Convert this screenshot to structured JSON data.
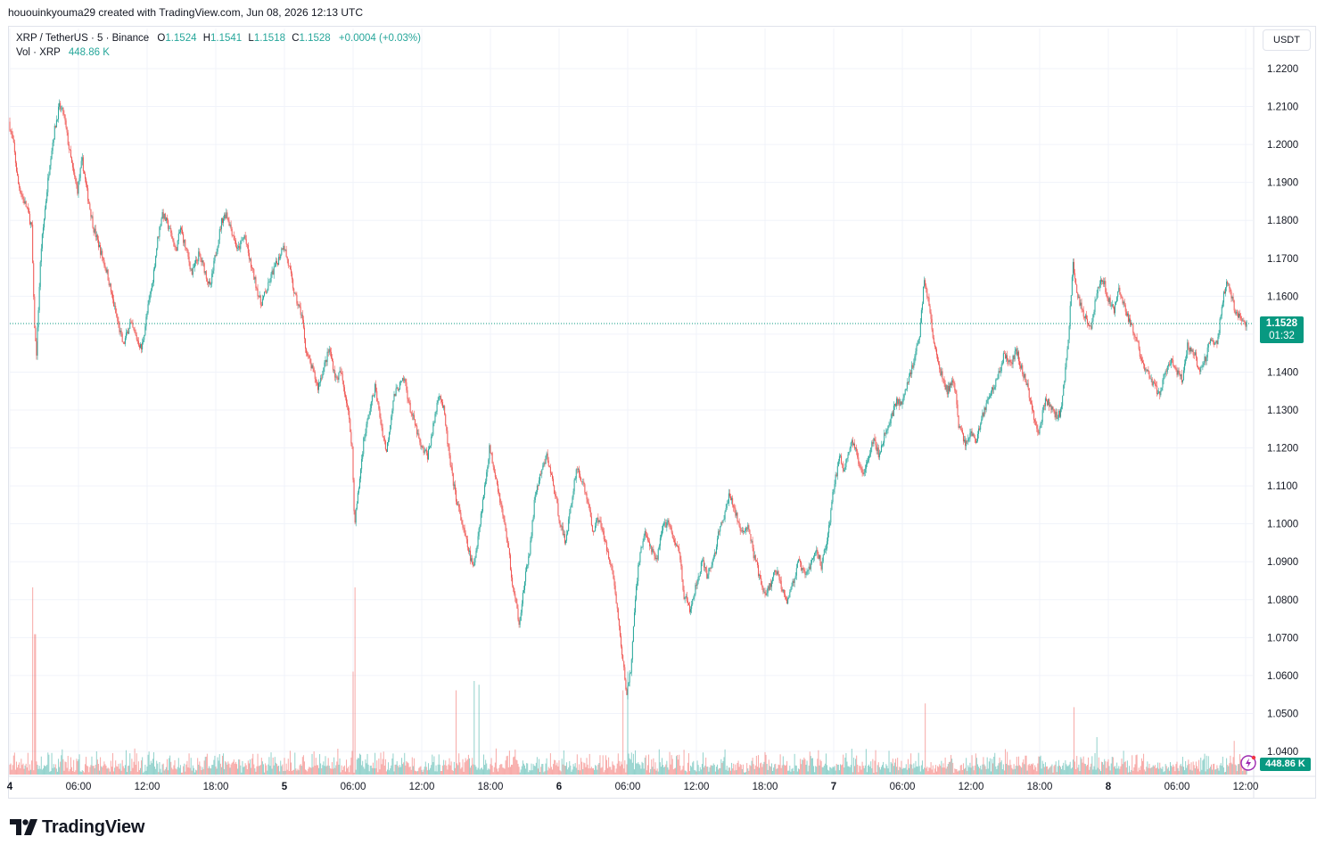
{
  "attribution": "hououinkyouma29 created with TradingView.com, Jun 08, 2026 12:13 UTC",
  "legend": {
    "symbol": "XRP / TetherUS · 5 · Binance",
    "o_label": "O",
    "o_value": "1.1524",
    "h_label": "H",
    "h_value": "1.1541",
    "l_label": "L",
    "l_value": "1.1518",
    "c_label": "C",
    "c_value": "1.1528",
    "change": "+0.0004 (+0.03%)",
    "vol_label": "Vol · XRP",
    "vol_value": "448.86 K"
  },
  "currency": "USDT",
  "price_tag": {
    "price": "1.1528",
    "countdown": "01:32"
  },
  "volume_tag": "448.86 K",
  "brand": "TradingView",
  "colors": {
    "up": "#26a69a",
    "down": "#ef5350",
    "accent": "#089981",
    "grid": "#f0f3fa"
  },
  "chart_data": {
    "type": "candlestick",
    "symbol": "XRP / TetherUS",
    "interval": "5",
    "exchange": "Binance",
    "y_axis": {
      "ticks": [
        "1.2200",
        "1.2100",
        "1.2000",
        "1.1900",
        "1.1800",
        "1.1700",
        "1.1600",
        "1.1500",
        "1.1400",
        "1.1300",
        "1.1200",
        "1.1100",
        "1.1000",
        "1.0900",
        "1.0800",
        "1.0700",
        "1.0600",
        "1.0500",
        "1.0400"
      ],
      "range": [
        1.0375,
        1.2225
      ],
      "last_price": 1.1528
    },
    "x_axis": {
      "ticks": [
        {
          "label": "4",
          "t": 0
        },
        {
          "label": "06:00",
          "t": 6
        },
        {
          "label": "12:00",
          "t": 12
        },
        {
          "label": "18:00",
          "t": 18
        },
        {
          "label": "5",
          "t": 24
        },
        {
          "label": "06:00",
          "t": 30
        },
        {
          "label": "12:00",
          "t": 36
        },
        {
          "label": "18:00",
          "t": 42
        },
        {
          "label": "6",
          "t": 48
        },
        {
          "label": "06:00",
          "t": 54
        },
        {
          "label": "12:00",
          "t": 60
        },
        {
          "label": "18:00",
          "t": 66
        },
        {
          "label": "7",
          "t": 72
        },
        {
          "label": "06:00",
          "t": 78
        },
        {
          "label": "12:00",
          "t": 84
        },
        {
          "label": "18:00",
          "t": 90
        },
        {
          "label": "8",
          "t": 96
        },
        {
          "label": "06:00",
          "t": 102
        },
        {
          "label": "12:00",
          "t": 108
        }
      ],
      "range_hours": [
        0,
        108.25
      ]
    },
    "price_path": [
      [
        0.0,
        1.206
      ],
      [
        0.4,
        1.2
      ],
      [
        0.8,
        1.19
      ],
      [
        1.2,
        1.186
      ],
      [
        1.6,
        1.183
      ],
      [
        2.0,
        1.178
      ],
      [
        2.2,
        1.155
      ],
      [
        2.4,
        1.144
      ],
      [
        2.8,
        1.172
      ],
      [
        3.2,
        1.184
      ],
      [
        3.6,
        1.196
      ],
      [
        4.0,
        1.204
      ],
      [
        4.4,
        1.21
      ],
      [
        4.8,
        1.208
      ],
      [
        5.2,
        1.2
      ],
      [
        5.6,
        1.193
      ],
      [
        6.0,
        1.188
      ],
      [
        6.4,
        1.196
      ],
      [
        6.8,
        1.188
      ],
      [
        7.4,
        1.178
      ],
      [
        8.0,
        1.172
      ],
      [
        8.6,
        1.166
      ],
      [
        9.0,
        1.16
      ],
      [
        9.6,
        1.152
      ],
      [
        10.0,
        1.147
      ],
      [
        10.6,
        1.153
      ],
      [
        11.0,
        1.15
      ],
      [
        11.6,
        1.146
      ],
      [
        12.0,
        1.154
      ],
      [
        12.6,
        1.165
      ],
      [
        13.0,
        1.175
      ],
      [
        13.4,
        1.182
      ],
      [
        14.0,
        1.178
      ],
      [
        14.6,
        1.172
      ],
      [
        15.0,
        1.178
      ],
      [
        15.6,
        1.171
      ],
      [
        16.0,
        1.166
      ],
      [
        16.6,
        1.171
      ],
      [
        17.0,
        1.168
      ],
      [
        17.6,
        1.162
      ],
      [
        18.0,
        1.17
      ],
      [
        18.6,
        1.18
      ],
      [
        19.0,
        1.182
      ],
      [
        19.6,
        1.176
      ],
      [
        20.0,
        1.172
      ],
      [
        20.6,
        1.176
      ],
      [
        21.0,
        1.17
      ],
      [
        21.6,
        1.163
      ],
      [
        22.0,
        1.158
      ],
      [
        22.6,
        1.162
      ],
      [
        23.0,
        1.166
      ],
      [
        23.6,
        1.17
      ],
      [
        24.0,
        1.174
      ],
      [
        24.6,
        1.166
      ],
      [
        25.0,
        1.16
      ],
      [
        25.6,
        1.155
      ],
      [
        26.0,
        1.145
      ],
      [
        26.6,
        1.14
      ],
      [
        27.0,
        1.136
      ],
      [
        27.6,
        1.142
      ],
      [
        28.0,
        1.146
      ],
      [
        28.6,
        1.138
      ],
      [
        29.0,
        1.14
      ],
      [
        29.6,
        1.131
      ],
      [
        30.0,
        1.12
      ],
      [
        30.2,
        1.1
      ],
      [
        30.6,
        1.11
      ],
      [
        31.0,
        1.122
      ],
      [
        31.6,
        1.131
      ],
      [
        32.0,
        1.136
      ],
      [
        32.6,
        1.125
      ],
      [
        33.0,
        1.119
      ],
      [
        33.6,
        1.133
      ],
      [
        34.0,
        1.136
      ],
      [
        34.6,
        1.138
      ],
      [
        35.0,
        1.131
      ],
      [
        35.6,
        1.125
      ],
      [
        36.0,
        1.12
      ],
      [
        36.6,
        1.118
      ],
      [
        37.0,
        1.124
      ],
      [
        37.6,
        1.135
      ],
      [
        38.0,
        1.13
      ],
      [
        38.6,
        1.115
      ],
      [
        39.0,
        1.108
      ],
      [
        39.6,
        1.1
      ],
      [
        40.0,
        1.095
      ],
      [
        40.6,
        1.088
      ],
      [
        41.0,
        1.097
      ],
      [
        41.6,
        1.11
      ],
      [
        42.0,
        1.12
      ],
      [
        42.6,
        1.112
      ],
      [
        43.0,
        1.105
      ],
      [
        43.6,
        1.095
      ],
      [
        44.0,
        1.084
      ],
      [
        44.6,
        1.074
      ],
      [
        45.0,
        1.083
      ],
      [
        45.6,
        1.095
      ],
      [
        46.0,
        1.108
      ],
      [
        46.6,
        1.114
      ],
      [
        47.0,
        1.118
      ],
      [
        47.6,
        1.11
      ],
      [
        48.0,
        1.103
      ],
      [
        48.6,
        1.095
      ],
      [
        49.0,
        1.102
      ],
      [
        49.6,
        1.115
      ],
      [
        50.0,
        1.112
      ],
      [
        50.6,
        1.106
      ],
      [
        51.0,
        1.098
      ],
      [
        51.6,
        1.102
      ],
      [
        52.0,
        1.096
      ],
      [
        52.6,
        1.09
      ],
      [
        53.0,
        1.082
      ],
      [
        53.6,
        1.065
      ],
      [
        54.0,
        1.055
      ],
      [
        54.4,
        1.063
      ],
      [
        54.8,
        1.083
      ],
      [
        55.2,
        1.093
      ],
      [
        55.6,
        1.098
      ],
      [
        56.0,
        1.094
      ],
      [
        56.6,
        1.09
      ],
      [
        57.0,
        1.098
      ],
      [
        57.6,
        1.101
      ],
      [
        58.0,
        1.096
      ],
      [
        58.6,
        1.093
      ],
      [
        59.0,
        1.081
      ],
      [
        59.6,
        1.077
      ],
      [
        60.0,
        1.083
      ],
      [
        60.6,
        1.09
      ],
      [
        61.0,
        1.086
      ],
      [
        61.6,
        1.091
      ],
      [
        62.0,
        1.097
      ],
      [
        62.6,
        1.103
      ],
      [
        63.0,
        1.108
      ],
      [
        63.6,
        1.102
      ],
      [
        64.0,
        1.097
      ],
      [
        64.6,
        1.1
      ],
      [
        65.0,
        1.093
      ],
      [
        65.6,
        1.086
      ],
      [
        66.0,
        1.081
      ],
      [
        66.6,
        1.084
      ],
      [
        67.0,
        1.088
      ],
      [
        67.6,
        1.083
      ],
      [
        68.0,
        1.08
      ],
      [
        68.6,
        1.085
      ],
      [
        69.0,
        1.09
      ],
      [
        69.6,
        1.086
      ],
      [
        70.0,
        1.089
      ],
      [
        70.6,
        1.093
      ],
      [
        71.0,
        1.089
      ],
      [
        71.6,
        1.097
      ],
      [
        72.0,
        1.108
      ],
      [
        72.6,
        1.118
      ],
      [
        73.0,
        1.114
      ],
      [
        73.6,
        1.122
      ],
      [
        74.0,
        1.119
      ],
      [
        74.6,
        1.113
      ],
      [
        75.0,
        1.117
      ],
      [
        75.6,
        1.123
      ],
      [
        76.0,
        1.118
      ],
      [
        76.6,
        1.124
      ],
      [
        77.0,
        1.127
      ],
      [
        77.6,
        1.133
      ],
      [
        78.0,
        1.131
      ],
      [
        78.6,
        1.138
      ],
      [
        79.0,
        1.142
      ],
      [
        79.6,
        1.15
      ],
      [
        80.0,
        1.165
      ],
      [
        80.4,
        1.158
      ],
      [
        80.8,
        1.148
      ],
      [
        81.4,
        1.14
      ],
      [
        82.0,
        1.135
      ],
      [
        82.6,
        1.138
      ],
      [
        83.0,
        1.126
      ],
      [
        83.6,
        1.121
      ],
      [
        84.0,
        1.124
      ],
      [
        84.6,
        1.122
      ],
      [
        85.0,
        1.128
      ],
      [
        85.6,
        1.133
      ],
      [
        86.0,
        1.136
      ],
      [
        86.6,
        1.14
      ],
      [
        87.0,
        1.145
      ],
      [
        87.6,
        1.142
      ],
      [
        88.0,
        1.146
      ],
      [
        88.6,
        1.14
      ],
      [
        89.0,
        1.136
      ],
      [
        89.6,
        1.128
      ],
      [
        90.0,
        1.124
      ],
      [
        90.6,
        1.133
      ],
      [
        91.0,
        1.131
      ],
      [
        91.6,
        1.128
      ],
      [
        92.0,
        1.13
      ],
      [
        92.6,
        1.15
      ],
      [
        93.0,
        1.168
      ],
      [
        93.4,
        1.16
      ],
      [
        94.0,
        1.155
      ],
      [
        94.6,
        1.152
      ],
      [
        95.0,
        1.16
      ],
      [
        95.6,
        1.165
      ],
      [
        96.0,
        1.16
      ],
      [
        96.6,
        1.156
      ],
      [
        97.0,
        1.162
      ],
      [
        97.6,
        1.156
      ],
      [
        98.0,
        1.153
      ],
      [
        98.6,
        1.148
      ],
      [
        99.0,
        1.142
      ],
      [
        99.6,
        1.139
      ],
      [
        100.0,
        1.137
      ],
      [
        100.6,
        1.134
      ],
      [
        101.0,
        1.14
      ],
      [
        101.6,
        1.143
      ],
      [
        102.0,
        1.14
      ],
      [
        102.6,
        1.138
      ],
      [
        103.0,
        1.147
      ],
      [
        103.6,
        1.145
      ],
      [
        104.0,
        1.14
      ],
      [
        104.6,
        1.144
      ],
      [
        105.0,
        1.149
      ],
      [
        105.6,
        1.147
      ],
      [
        106.0,
        1.158
      ],
      [
        106.4,
        1.164
      ],
      [
        106.8,
        1.16
      ],
      [
        107.2,
        1.156
      ],
      [
        107.6,
        1.154
      ],
      [
        108.0,
        1.1528
      ]
    ],
    "volume_spikes": [
      [
        2.0,
        1.0
      ],
      [
        2.2,
        0.75
      ],
      [
        30.2,
        1.0
      ],
      [
        30.0,
        0.55
      ],
      [
        40.6,
        0.5
      ],
      [
        41.0,
        0.48
      ],
      [
        39.0,
        0.45
      ],
      [
        53.6,
        0.45
      ],
      [
        54.0,
        0.55
      ],
      [
        80.0,
        0.38
      ],
      [
        93.0,
        0.36
      ],
      [
        95.0,
        0.2
      ],
      [
        107.0,
        0.18
      ]
    ],
    "volume_last": "448.86 K",
    "grid": true,
    "legend_placement": "top-left"
  }
}
